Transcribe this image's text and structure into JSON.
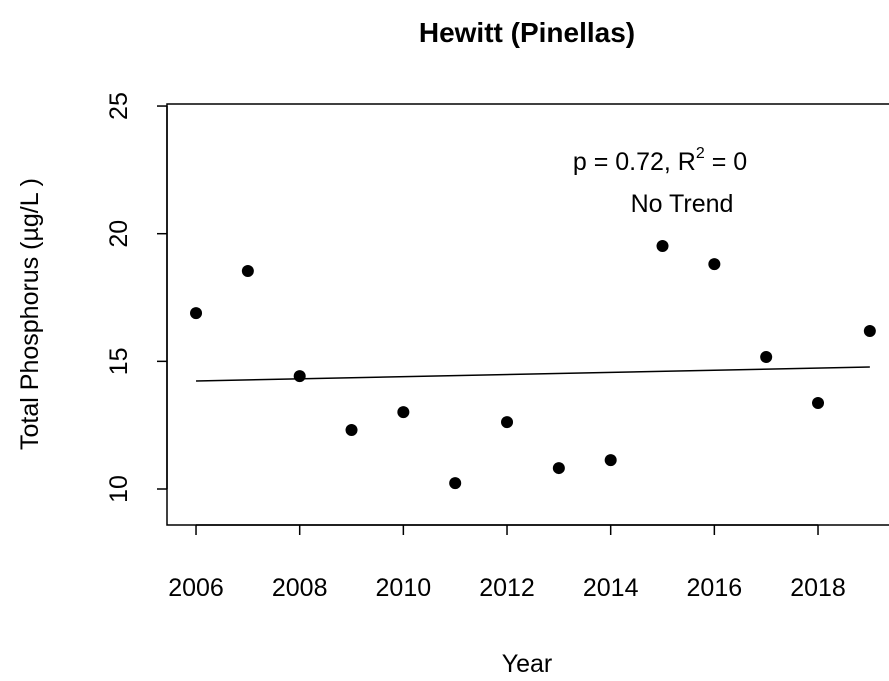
{
  "chart_data": {
    "type": "scatter",
    "title": "Hewitt (Pinellas)",
    "x_label": "Year",
    "y_label": "Total Phosphorus (µg/L )",
    "x": [
      2006,
      2007,
      2008,
      2009,
      2010,
      2011,
      2012,
      2013,
      2014,
      2015,
      2016,
      2017,
      2018,
      2019
    ],
    "values": [
      16.89,
      18.54,
      14.42,
      12.31,
      13.01,
      10.23,
      12.62,
      10.82,
      11.13,
      19.52,
      18.81,
      15.17,
      13.37,
      16.19
    ],
    "color": "#000000",
    "trend": {
      "x": [
        2006,
        2019
      ],
      "values": [
        14.23,
        14.78
      ]
    },
    "annotation": {
      "text": "p = 0.72, R",
      "superscript": "2",
      "suffix": " = 0"
    },
    "trend_label": "No Trend",
    "xlim": [
      2005.44,
      2019.52
    ],
    "ylim": [
      8.59,
      25.08
    ],
    "xticks": [
      2006,
      2008,
      2010,
      2012,
      2014,
      2016,
      2018
    ],
    "yticks": [
      10,
      15,
      20,
      25
    ]
  }
}
